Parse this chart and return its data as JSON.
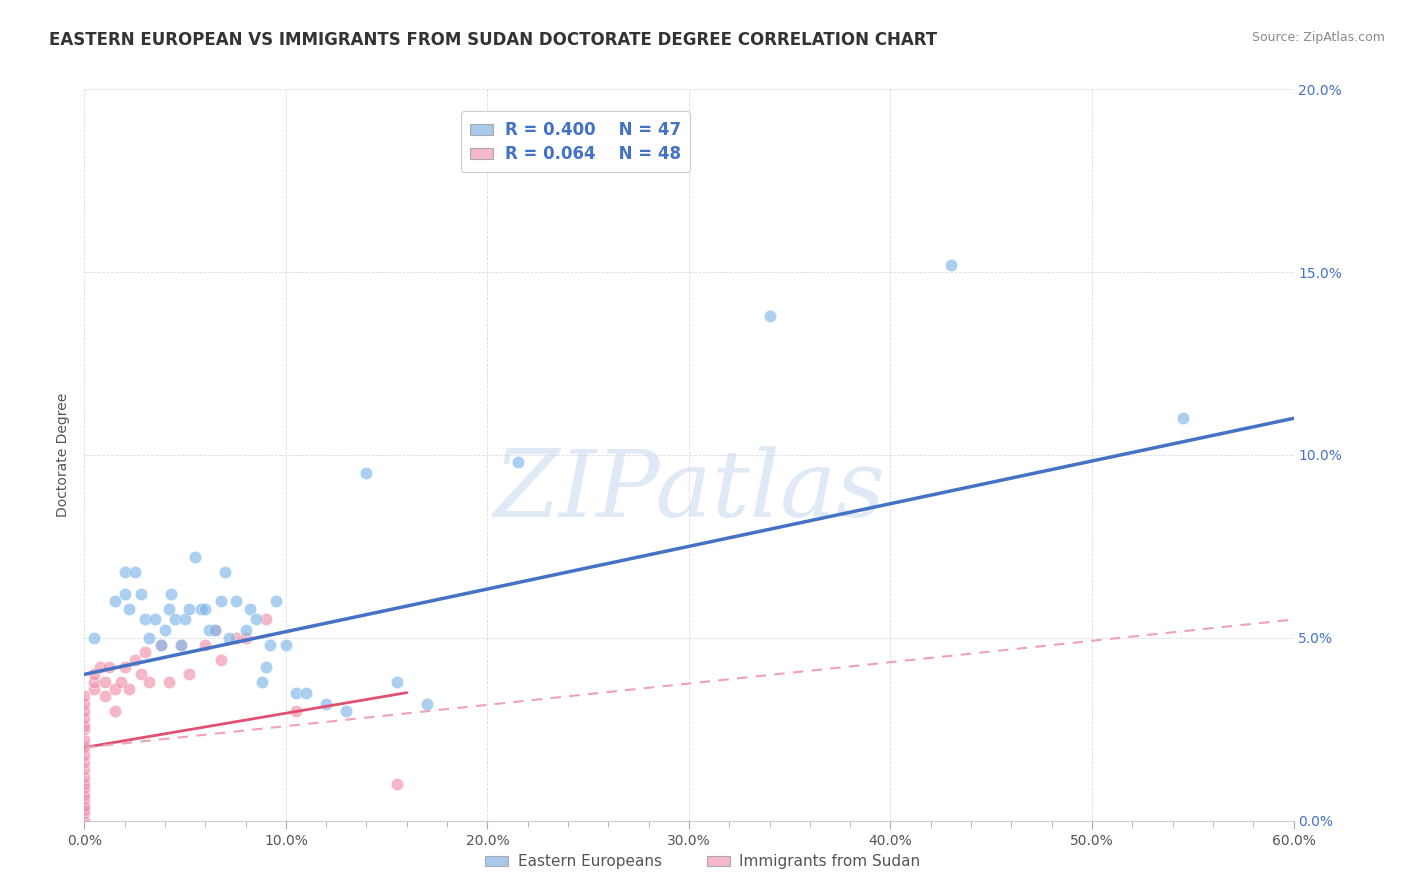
{
  "title": "EASTERN EUROPEAN VS IMMIGRANTS FROM SUDAN DOCTORATE DEGREE CORRELATION CHART",
  "source": "Source: ZipAtlas.com",
  "ylabel": "Doctorate Degree",
  "xlim": [
    0,
    0.6
  ],
  "ylim": [
    0,
    0.2
  ],
  "xticks": [
    0.0,
    0.1,
    0.2,
    0.3,
    0.4,
    0.5,
    0.6
  ],
  "xticklabels": [
    "0.0%",
    "10.0%",
    "20.0%",
    "30.0%",
    "40.0%",
    "50.0%",
    "60.0%"
  ],
  "yticks": [
    0.0,
    0.05,
    0.1,
    0.15,
    0.2
  ],
  "yticklabels": [
    "0.0%",
    "5.0%",
    "10.0%",
    "15.0%",
    "20.0%"
  ],
  "series1_label": "Eastern Europeans",
  "series1_R": "R = 0.400",
  "series1_N": "N = 47",
  "series1_color": "#A8C8EC",
  "series1_marker_color": "#7EB6E8",
  "series1_trend_color": "#4472C4",
  "series2_label": "Immigrants from Sudan",
  "series2_R": "R = 0.064",
  "series2_N": "N = 48",
  "series2_color": "#F4B8C8",
  "series2_marker_color": "#F090A8",
  "series2_solid_trend_color": "#E05070",
  "series2_dash_trend_color": "#F0A0B8",
  "watermark": "ZIPatlas",
  "bg_color": "#FFFFFF",
  "grid_color": "#CCCCCC",
  "title_fontsize": 12,
  "axis_label_fontsize": 10,
  "tick_fontsize": 10,
  "legend_fontsize": 11,
  "series1_x": [
    0.005,
    0.015,
    0.02,
    0.02,
    0.022,
    0.025,
    0.028,
    0.03,
    0.032,
    0.035,
    0.038,
    0.04,
    0.042,
    0.043,
    0.045,
    0.048,
    0.05,
    0.052,
    0.055,
    0.058,
    0.06,
    0.062,
    0.065,
    0.068,
    0.07,
    0.072,
    0.075,
    0.08,
    0.082,
    0.085,
    0.088,
    0.09,
    0.092,
    0.095,
    0.1,
    0.105,
    0.11,
    0.12,
    0.13,
    0.14,
    0.155,
    0.17,
    0.215,
    0.285,
    0.34,
    0.43,
    0.545
  ],
  "series1_y": [
    0.05,
    0.06,
    0.062,
    0.068,
    0.058,
    0.068,
    0.062,
    0.055,
    0.05,
    0.055,
    0.048,
    0.052,
    0.058,
    0.062,
    0.055,
    0.048,
    0.055,
    0.058,
    0.072,
    0.058,
    0.058,
    0.052,
    0.052,
    0.06,
    0.068,
    0.05,
    0.06,
    0.052,
    0.058,
    0.055,
    0.038,
    0.042,
    0.048,
    0.06,
    0.048,
    0.035,
    0.035,
    0.032,
    0.03,
    0.095,
    0.038,
    0.032,
    0.098,
    0.185,
    0.138,
    0.152,
    0.11
  ],
  "series2_x": [
    0.0,
    0.0,
    0.0,
    0.0,
    0.0,
    0.0,
    0.0,
    0.0,
    0.0,
    0.0,
    0.0,
    0.0,
    0.0,
    0.0,
    0.0,
    0.0,
    0.0,
    0.0,
    0.0,
    0.0,
    0.005,
    0.005,
    0.005,
    0.008,
    0.01,
    0.01,
    0.012,
    0.015,
    0.015,
    0.018,
    0.02,
    0.022,
    0.025,
    0.028,
    0.03,
    0.032,
    0.038,
    0.042,
    0.048,
    0.052,
    0.06,
    0.065,
    0.068,
    0.075,
    0.08,
    0.09,
    0.105,
    0.155
  ],
  "series2_y": [
    0.0,
    0.002,
    0.003,
    0.004,
    0.006,
    0.007,
    0.009,
    0.01,
    0.012,
    0.014,
    0.016,
    0.018,
    0.02,
    0.022,
    0.025,
    0.026,
    0.028,
    0.03,
    0.032,
    0.034,
    0.036,
    0.038,
    0.04,
    0.042,
    0.038,
    0.034,
    0.042,
    0.036,
    0.03,
    0.038,
    0.042,
    0.036,
    0.044,
    0.04,
    0.046,
    0.038,
    0.048,
    0.038,
    0.048,
    0.04,
    0.048,
    0.052,
    0.044,
    0.05,
    0.05,
    0.055,
    0.03,
    0.01
  ],
  "series1_trend_x": [
    0.0,
    0.6
  ],
  "series1_trend_y": [
    0.04,
    0.11
  ],
  "series2_solid_trend_x": [
    0.0,
    0.16
  ],
  "series2_solid_trend_y": [
    0.02,
    0.035
  ],
  "series2_dash_trend_x": [
    0.0,
    0.6
  ],
  "series2_dash_trend_y": [
    0.02,
    0.055
  ]
}
